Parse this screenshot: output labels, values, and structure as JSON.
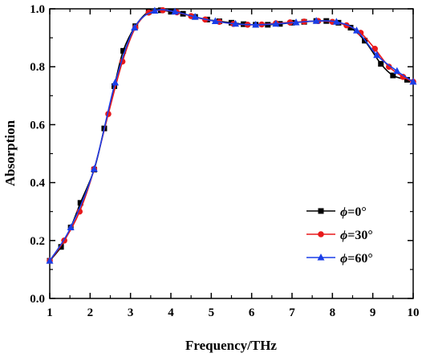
{
  "chart_data": {
    "type": "line",
    "xlabel": "Frequency/THz",
    "ylabel": "Absorption",
    "xlim": [
      1,
      10
    ],
    "ylim": [
      0,
      1
    ],
    "xticks": [
      "1",
      "2",
      "3",
      "4",
      "5",
      "6",
      "7",
      "8",
      "9",
      "10"
    ],
    "yticks": [
      "0.0",
      "0.2",
      "0.4",
      "0.6",
      "0.8",
      "1.0"
    ],
    "grid": false,
    "legend_position": "bottom-right",
    "series": [
      {
        "name_symbol": "ϕ",
        "name_value": "=0°",
        "color": "#000000",
        "marker": "square",
        "x": [
          1.0,
          1.28,
          1.52,
          1.76,
          2.1,
          2.35,
          2.6,
          2.82,
          3.12,
          3.45,
          3.75,
          4.0,
          4.3,
          4.6,
          4.9,
          5.2,
          5.5,
          5.8,
          6.1,
          6.4,
          6.7,
          7.0,
          7.3,
          7.6,
          7.85,
          8.15,
          8.45,
          8.8,
          9.2,
          9.5,
          9.85
        ],
        "y": [
          0.13,
          0.178,
          0.245,
          0.33,
          0.445,
          0.587,
          0.733,
          0.855,
          0.94,
          0.99,
          0.995,
          0.99,
          0.983,
          0.972,
          0.963,
          0.957,
          0.952,
          0.947,
          0.945,
          0.945,
          0.948,
          0.952,
          0.955,
          0.958,
          0.958,
          0.952,
          0.935,
          0.89,
          0.81,
          0.77,
          0.755
        ]
      },
      {
        "name_symbol": "ϕ",
        "name_value": "=30°",
        "color": "#e8191b",
        "marker": "circle",
        "x": [
          1.0,
          1.36,
          1.74,
          2.1,
          2.45,
          2.8,
          3.12,
          3.45,
          3.8,
          4.15,
          4.5,
          4.85,
          5.2,
          5.55,
          5.9,
          6.25,
          6.6,
          6.95,
          7.3,
          7.65,
          8.0,
          8.35,
          8.7,
          9.05,
          9.4,
          9.75,
          10.0
        ],
        "y": [
          0.13,
          0.2,
          0.3,
          0.447,
          0.637,
          0.818,
          0.935,
          0.987,
          0.995,
          0.988,
          0.975,
          0.963,
          0.955,
          0.948,
          0.945,
          0.946,
          0.95,
          0.953,
          0.956,
          0.958,
          0.955,
          0.943,
          0.917,
          0.862,
          0.8,
          0.765,
          0.748
        ]
      },
      {
        "name_symbol": "ϕ",
        "name_value": "=60°",
        "color": "#1a3ee8",
        "marker": "triangle",
        "x": [
          1.0,
          1.52,
          2.1,
          2.62,
          3.1,
          3.6,
          4.1,
          4.6,
          5.1,
          5.6,
          6.1,
          6.6,
          7.1,
          7.6,
          8.1,
          8.6,
          9.1,
          9.6,
          10.0
        ],
        "y": [
          0.13,
          0.245,
          0.447,
          0.745,
          0.935,
          0.993,
          0.99,
          0.972,
          0.957,
          0.948,
          0.945,
          0.948,
          0.953,
          0.958,
          0.955,
          0.925,
          0.84,
          0.785,
          0.748
        ]
      }
    ]
  }
}
